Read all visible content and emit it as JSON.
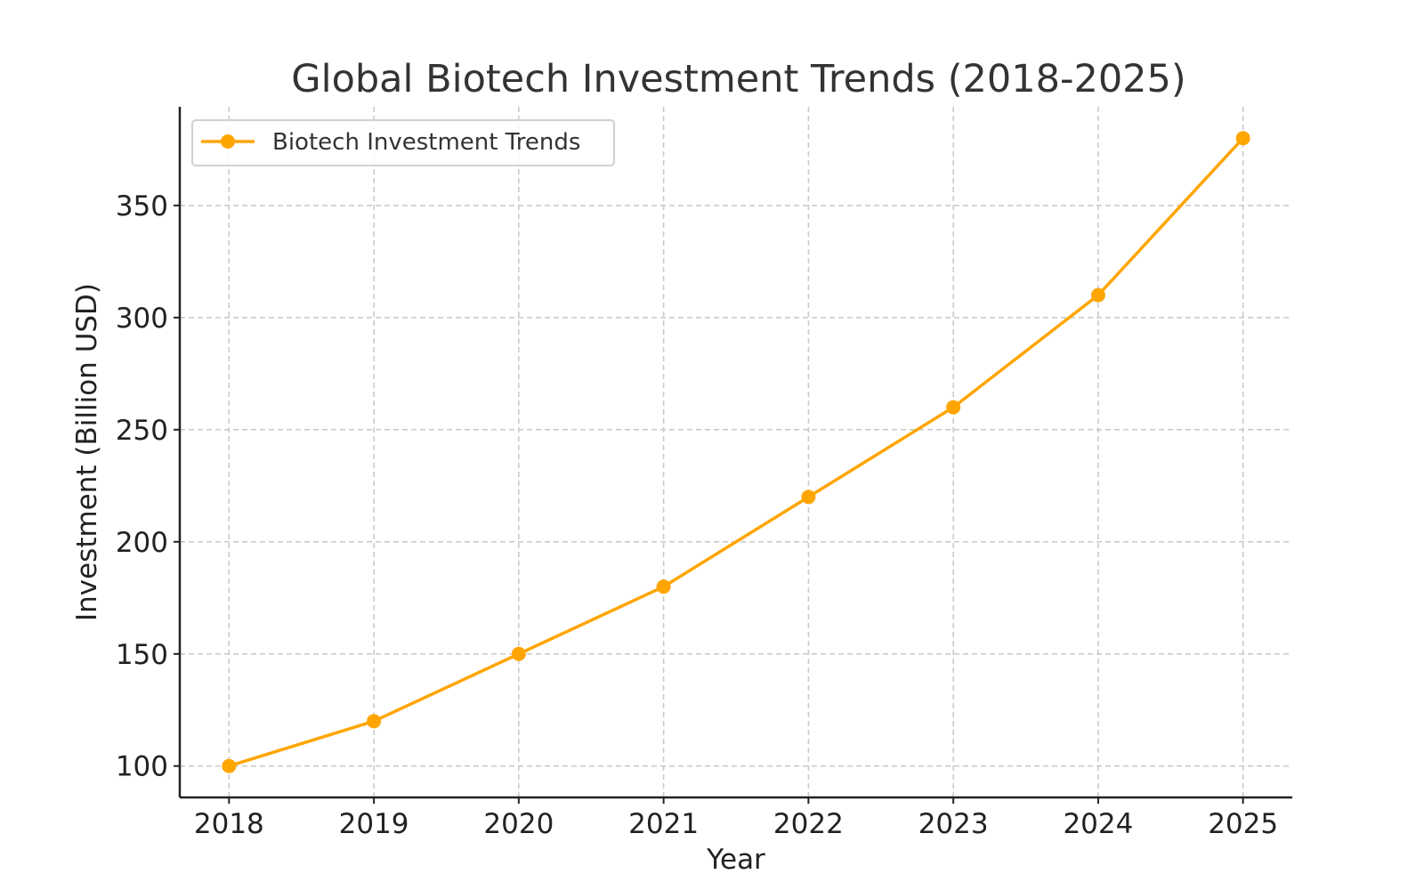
{
  "chart_data": {
    "type": "line",
    "title": "Global Biotech Investment Trends (2018-2025)",
    "xlabel": "Year",
    "ylabel": "Investment (Billion USD)",
    "x": [
      2018,
      2019,
      2020,
      2021,
      2022,
      2023,
      2024,
      2025
    ],
    "xticks": [
      "2018",
      "2019",
      "2020",
      "2021",
      "2022",
      "2023",
      "2024",
      "2025"
    ],
    "yticks": [
      100,
      150,
      200,
      250,
      300,
      350
    ],
    "ylim": [
      86,
      394
    ],
    "xlim": [
      2017.66,
      2025.34
    ],
    "grid": true,
    "legend_position": "top-left",
    "series": [
      {
        "name": "Biotech Investment Trends",
        "color": "#FFA500",
        "marker": "circle",
        "values": [
          100,
          120,
          150,
          180,
          220,
          260,
          310,
          380
        ]
      }
    ]
  }
}
